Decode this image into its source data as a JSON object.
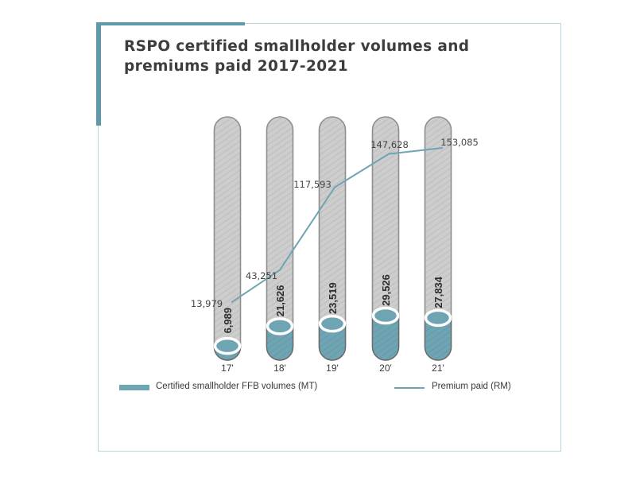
{
  "title": "RSPO certified smallholder volumes and premiums paid 2017-2021",
  "title_line1": "RSPO certified smallholder volumes and",
  "title_line2": "premiums paid 2017-2021",
  "colors": {
    "accent": "#5f9aab",
    "bar_fill": "#6fa4b3",
    "bar_empty": "#cfcfcf",
    "line": "#6fa4b3",
    "frame": "#b7d6de",
    "text": "#3d3d3d"
  },
  "legend": {
    "volumes_label": "Certified smallholder FFB volumes (MT)",
    "premium_label": "Premium paid (RM)"
  },
  "chart_data": {
    "type": "bar",
    "title": "RSPO certified smallholder volumes and premiums paid 2017-2021",
    "categories": [
      "17'",
      "18'",
      "19'",
      "20'",
      "21'"
    ],
    "series": [
      {
        "name": "Certified smallholder FFB volumes (MT)",
        "type": "bar",
        "values": [
          6989,
          21626,
          23519,
          29526,
          27834
        ],
        "labels": [
          "6,989",
          "21,626",
          "23,519",
          "29,526",
          "27,834"
        ]
      },
      {
        "name": "Premium paid (RM)",
        "type": "line",
        "values": [
          13979,
          43251,
          117593,
          147628,
          153085
        ],
        "labels": [
          "13,979",
          "43,251",
          "117,593",
          "147,628",
          "153,085"
        ]
      }
    ],
    "xlabel": "",
    "ylabel": "",
    "grid": false,
    "legend_position": "bottom"
  }
}
